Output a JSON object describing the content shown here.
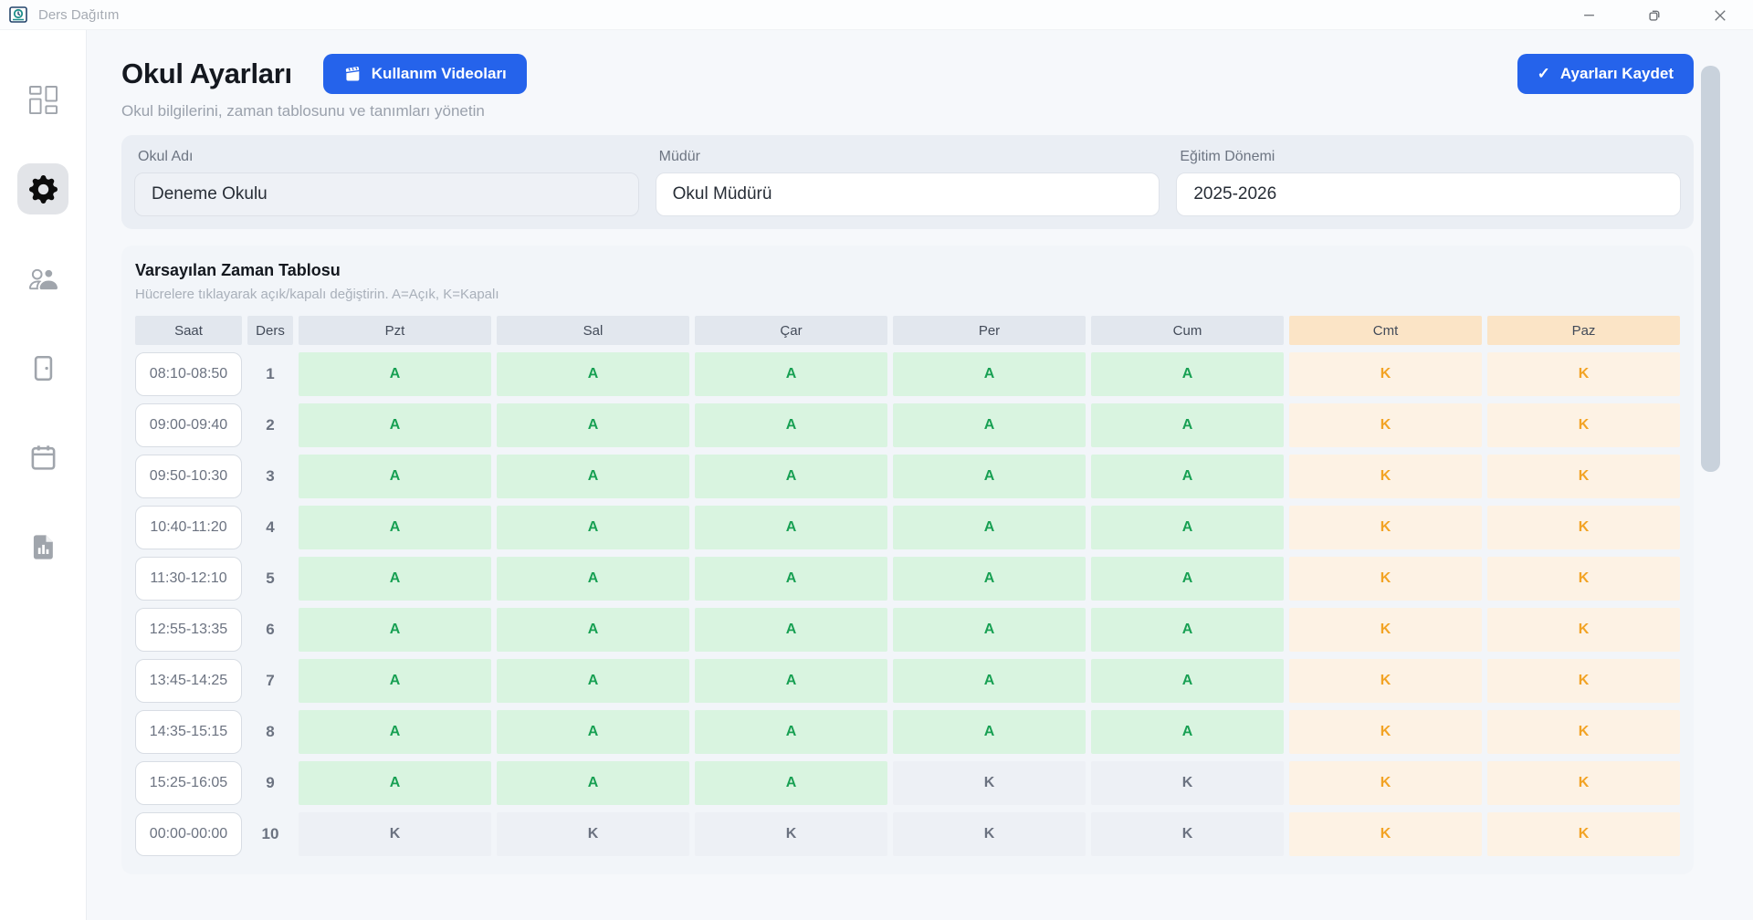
{
  "window": {
    "title": "Ders Dağıtım",
    "controls": [
      "minimize",
      "restore",
      "close"
    ]
  },
  "sidebar": {
    "items": [
      {
        "id": "dashboard",
        "icon": "dashboard-icon",
        "active": false
      },
      {
        "id": "settings",
        "icon": "gear-icon",
        "active": true
      },
      {
        "id": "people",
        "icon": "users-icon",
        "active": false
      },
      {
        "id": "rooms",
        "icon": "door-icon",
        "active": false
      },
      {
        "id": "schedule",
        "icon": "calendar-icon",
        "active": false
      },
      {
        "id": "reports",
        "icon": "report-icon",
        "active": false
      }
    ]
  },
  "header": {
    "title": "Okul Ayarları",
    "subtitle": "Okul bilgilerini, zaman tablosunu ve tanımları yönetin",
    "videos_button": "Kullanım Videoları",
    "save_button": "Ayarları Kaydet",
    "save_check": "✓"
  },
  "form": {
    "fields": [
      {
        "label": "Okul Adı",
        "value": "Deneme Okulu"
      },
      {
        "label": "Müdür",
        "value": "Okul Müdürü"
      },
      {
        "label": "Eğitim Dönemi",
        "value": "2025-2026"
      }
    ]
  },
  "timetable": {
    "title": "Varsayılan Zaman Tablosu",
    "subtitle": "Hücrelere tıklayarak açık/kapalı değiştirin. A=Açık, K=Kapalı",
    "columns": [
      "Saat",
      "Ders",
      "Pzt",
      "Sal",
      "Çar",
      "Per",
      "Cum",
      "Cmt",
      "Paz"
    ],
    "weekend_columns": [
      "Cmt",
      "Paz"
    ],
    "rows": [
      {
        "time": "08:10-08:50",
        "ders": "1",
        "cells": [
          "A",
          "A",
          "A",
          "A",
          "A",
          "K",
          "K"
        ]
      },
      {
        "time": "09:00-09:40",
        "ders": "2",
        "cells": [
          "A",
          "A",
          "A",
          "A",
          "A",
          "K",
          "K"
        ]
      },
      {
        "time": "09:50-10:30",
        "ders": "3",
        "cells": [
          "A",
          "A",
          "A",
          "A",
          "A",
          "K",
          "K"
        ]
      },
      {
        "time": "10:40-11:20",
        "ders": "4",
        "cells": [
          "A",
          "A",
          "A",
          "A",
          "A",
          "K",
          "K"
        ]
      },
      {
        "time": "11:30-12:10",
        "ders": "5",
        "cells": [
          "A",
          "A",
          "A",
          "A",
          "A",
          "K",
          "K"
        ]
      },
      {
        "time": "12:55-13:35",
        "ders": "6",
        "cells": [
          "A",
          "A",
          "A",
          "A",
          "A",
          "K",
          "K"
        ]
      },
      {
        "time": "13:45-14:25",
        "ders": "7",
        "cells": [
          "A",
          "A",
          "A",
          "A",
          "A",
          "K",
          "K"
        ]
      },
      {
        "time": "14:35-15:15",
        "ders": "8",
        "cells": [
          "A",
          "A",
          "A",
          "A",
          "A",
          "K",
          "K"
        ]
      },
      {
        "time": "15:25-16:05",
        "ders": "9",
        "cells": [
          "A",
          "A",
          "A",
          "K",
          "K",
          "K",
          "K"
        ]
      },
      {
        "time": "00:00-00:00",
        "ders": "10",
        "cells": [
          "K",
          "K",
          "K",
          "K",
          "K",
          "K",
          "K"
        ]
      }
    ]
  },
  "colors": {
    "accent_blue": "#2563eb",
    "open_green_text": "#18a053",
    "open_green_bg": "#d9f4e0",
    "closed_gray_text": "#6b7280",
    "closed_gray_bg": "#edf0f5",
    "weekend_orange_text": "#f2a324",
    "weekend_orange_bg": "#fdf2e4",
    "weekend_header_bg": "#fbe4c6",
    "weekday_header_bg": "#e2e7ee"
  }
}
